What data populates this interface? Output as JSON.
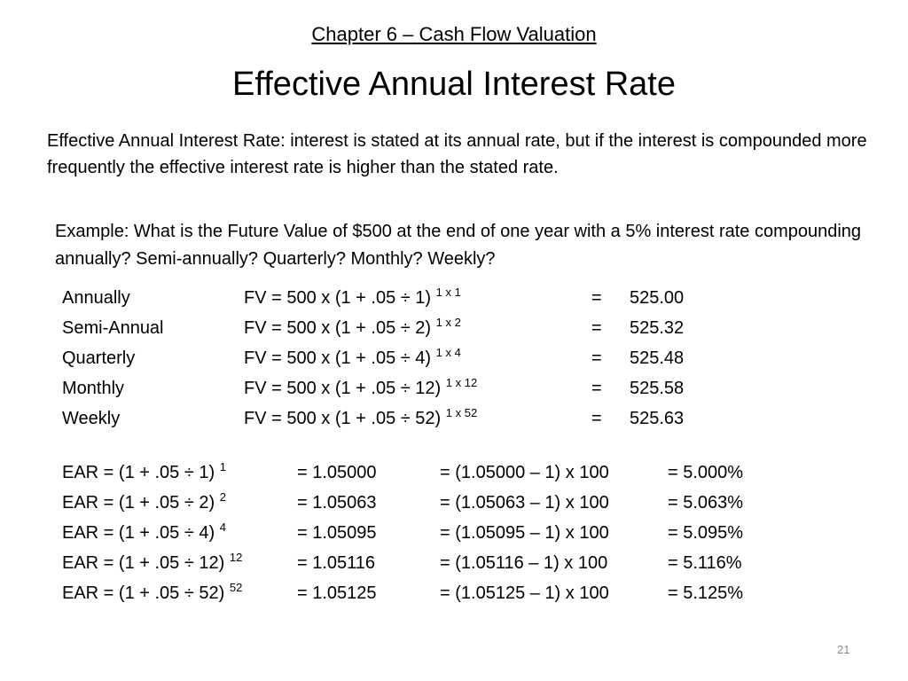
{
  "slide": {
    "chapter": "Chapter 6 – Cash Flow Valuation",
    "title": "Effective Annual Interest Rate",
    "definition": "Effective Annual Interest Rate: interest is stated at its annual rate, but if the interest is compounded more frequently the effective interest rate is higher than the stated rate.",
    "example": "Example:  What is the Future Value of $500 at the end of one year with a 5% interest rate compounding annually?  Semi-annually?  Quarterly?  Monthly?  Weekly?",
    "page_number": "21"
  },
  "fv_rows": [
    {
      "label": "Annually",
      "formula": "FV = 500 x (1 + .05 ÷ 1)",
      "exponent": "1 x 1",
      "eq": "=",
      "value": "525.00"
    },
    {
      "label": "Semi-Annual",
      "formula": "FV = 500 x (1 + .05 ÷ 2)",
      "exponent": "1 x 2",
      "eq": "=",
      "value": "525.32"
    },
    {
      "label": "Quarterly",
      "formula": "FV = 500 x (1 + .05 ÷ 4)",
      "exponent": "1 x 4",
      "eq": "=",
      "value": "525.48"
    },
    {
      "label": "Monthly",
      "formula": "FV = 500 x (1 + .05 ÷ 12)",
      "exponent": "1 x 12",
      "eq": "=",
      "value": "525.58"
    },
    {
      "label": "Weekly",
      "formula": "FV = 500 x (1 + .05 ÷ 52)",
      "exponent": "1 x 52",
      "eq": "=",
      "value": "525.63"
    }
  ],
  "ear_rows": [
    {
      "formula": "EAR = (1 + .05 ÷ 1)",
      "exponent": "1",
      "factor": "=  1.05000",
      "calc": "=  (1.05000 – 1) x 100",
      "pct": "=  5.000%"
    },
    {
      "formula": "EAR = (1 + .05 ÷ 2)",
      "exponent": "2",
      "factor": "=  1.05063",
      "calc": "=  (1.05063 – 1) x 100",
      "pct": "=  5.063%"
    },
    {
      "formula": "EAR = (1 + .05 ÷ 4)",
      "exponent": "4",
      "factor": "=  1.05095",
      "calc": "=  (1.05095 – 1) x 100",
      "pct": "=  5.095%"
    },
    {
      "formula": "EAR = (1 + .05 ÷ 12)",
      "exponent": "12",
      "factor": "=  1.05116",
      "calc": "=  (1.05116 – 1) x 100",
      "pct": "=  5.116%"
    },
    {
      "formula": "EAR = (1 + .05 ÷ 52)",
      "exponent": "52",
      "factor": "=  1.05125",
      "calc": "=  (1.05125 – 1) x 100",
      "pct": "=  5.125%"
    }
  ]
}
